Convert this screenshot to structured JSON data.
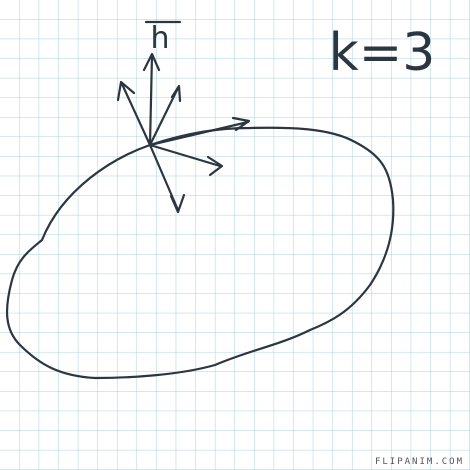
{
  "drawing": {
    "label_vector": "h",
    "label_k": "k=3"
  },
  "footer": {
    "watermark": "FLIPANIM.COM"
  }
}
